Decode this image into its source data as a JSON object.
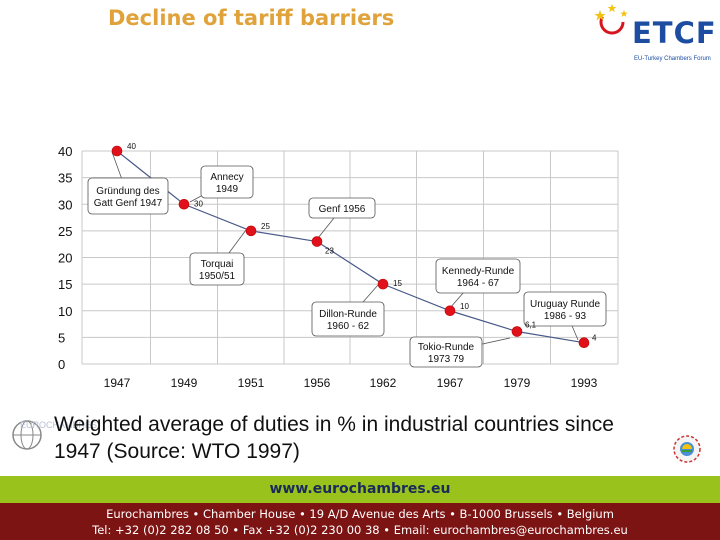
{
  "header": {
    "title": "Decline of tariff barriers",
    "logo_text": "ETCF",
    "logo_sub": "EU-Turkey Chambers Forum"
  },
  "chart_data": {
    "type": "line",
    "categories": [
      "1947",
      "1949",
      "1951",
      "1956",
      "1962",
      "1967",
      "1979",
      "1993"
    ],
    "values": [
      40,
      30,
      25,
      23,
      15,
      10,
      6.1,
      4
    ],
    "data_labels": [
      "40",
      "30",
      "25",
      "23",
      "15",
      "10",
      "6,1",
      "4"
    ],
    "y_ticks": [
      "0",
      "5",
      "10",
      "15",
      "20",
      "25",
      "30",
      "35",
      "40"
    ],
    "ylim": [
      0,
      40
    ],
    "grid": true,
    "series_color": "#e0111a",
    "line_color": "#4a5a8a",
    "callouts": [
      {
        "lines": [
          "Gründung des",
          "Gatt Genf 1947"
        ]
      },
      {
        "lines": [
          "Annecy",
          "1949"
        ]
      },
      {
        "lines": [
          "Torquai",
          "1950/51"
        ]
      },
      {
        "lines": [
          "Genf 1956"
        ]
      },
      {
        "lines": [
          "Dillon-Runde",
          "1960 - 62"
        ]
      },
      {
        "lines": [
          "Kennedy-Runde",
          "1964 - 67"
        ]
      },
      {
        "lines": [
          "Tokio-Runde",
          "1973   79"
        ]
      },
      {
        "lines": [
          "Uruguay Runde",
          "1986 - 93"
        ]
      }
    ]
  },
  "caption": "Weighted average of duties in % in industrial countries since 1947 (Source: WTO 1997)",
  "watermark": "EUROCHAMBRES",
  "footer": {
    "url": "www.eurochambres.eu",
    "line1": "Eurochambres • Chamber House • 19 A/D Avenue des Arts • B-1000 Brussels • Belgium",
    "line2": "Tel: +32 (0)2 282 08 50 • Fax +32 (0)2 230 00 38 • Email: eurochambres@eurochambres.eu"
  }
}
